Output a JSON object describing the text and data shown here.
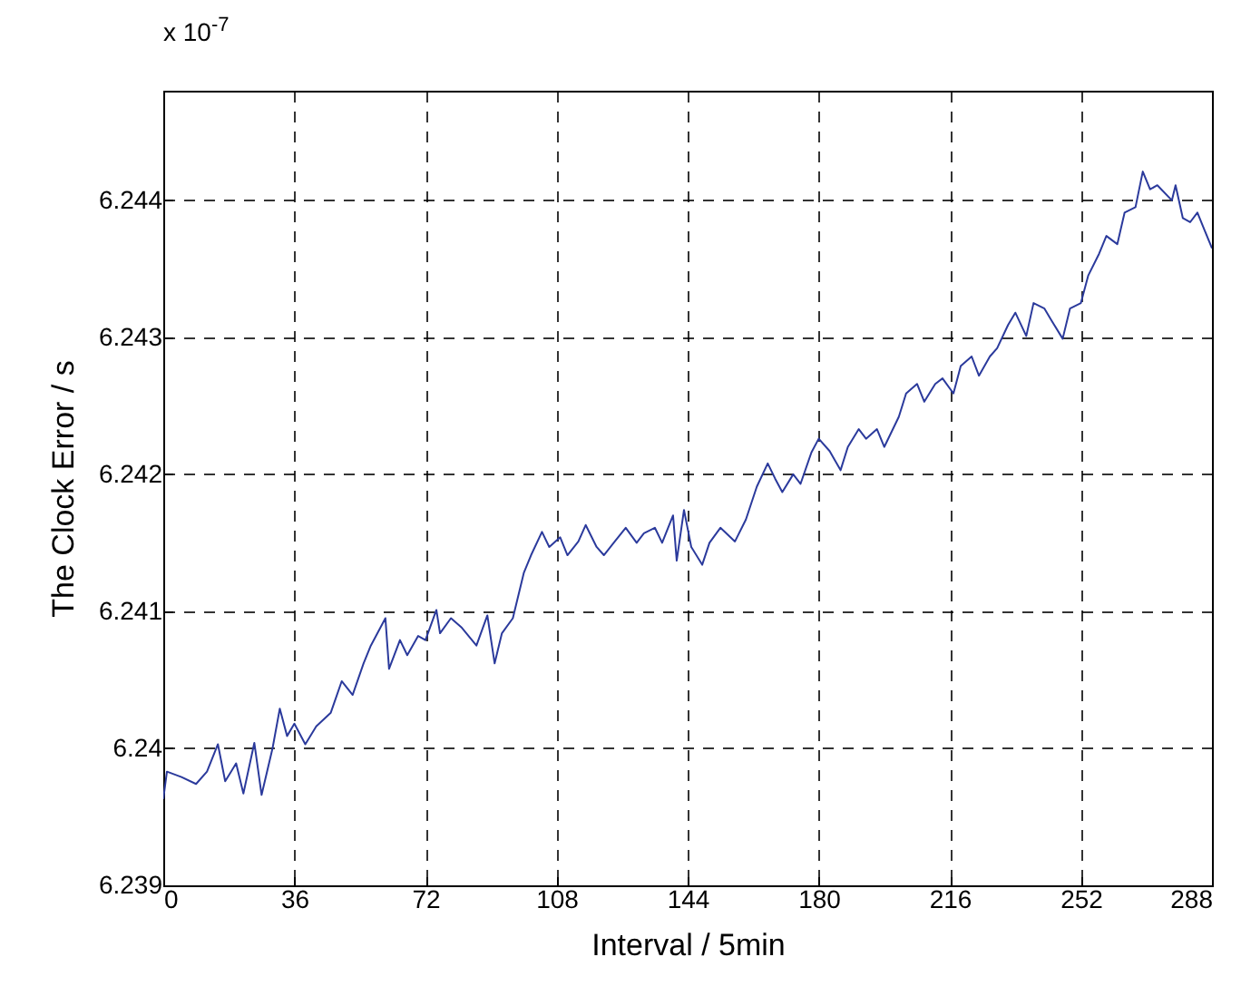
{
  "chart_data": {
    "type": "line",
    "xlabel": "Interval / 5min",
    "ylabel": "The Clock Error / s",
    "annotations": [
      "x 10$^{-7}$"
    ],
    "xlim": [
      0,
      288
    ],
    "xticks": [
      0,
      36,
      72,
      108,
      144,
      180,
      216,
      252,
      288
    ],
    "ylim": [
      6.239,
      6.2448
    ],
    "yticks": [
      6.239,
      6.24,
      6.241,
      6.242,
      6.243,
      6.244
    ],
    "grid": true,
    "line_style": "solid",
    "x": [
      0,
      1,
      5,
      9,
      12,
      15,
      17,
      20,
      22,
      25,
      27,
      30,
      32,
      34,
      36,
      39,
      42,
      46,
      49,
      52,
      55,
      57,
      61,
      62,
      65,
      67,
      70,
      72,
      75,
      76,
      79,
      82,
      86,
      89,
      91,
      93,
      96,
      99,
      101,
      104,
      106,
      109,
      111,
      114,
      116,
      119,
      121,
      124,
      127,
      130,
      132,
      135,
      137,
      140,
      141,
      143,
      145,
      148,
      150,
      153,
      157,
      160,
      163,
      166,
      168,
      170,
      173,
      175,
      178,
      180,
      183,
      186,
      188,
      191,
      193,
      196,
      198,
      202,
      204,
      207,
      209,
      212,
      214,
      217,
      219,
      222,
      224,
      227,
      229,
      232,
      234,
      237,
      239,
      242,
      244,
      247,
      249,
      252,
      254,
      257,
      259,
      262,
      264,
      267,
      269,
      271,
      273,
      277,
      278,
      280,
      282,
      284,
      286,
      288
    ],
    "series": [
      {
        "color": "#2b3a9c",
        "values": [
          6.23963,
          6.23983,
          6.23979,
          6.23974,
          6.23983,
          6.24003,
          6.23976,
          6.23989,
          6.23967,
          6.24004,
          6.23966,
          6.24,
          6.24029,
          6.24009,
          6.24018,
          6.24003,
          6.24016,
          6.24026,
          6.24049,
          6.24039,
          6.24062,
          6.24075,
          6.24095,
          6.24058,
          6.24079,
          6.24068,
          6.24082,
          6.24079,
          6.24101,
          6.24084,
          6.24095,
          6.24088,
          6.24075,
          6.24097,
          6.24062,
          6.24084,
          6.24095,
          6.24128,
          6.24141,
          6.24158,
          6.24147,
          6.24154,
          6.24141,
          6.24151,
          6.24163,
          6.24147,
          6.24141,
          6.24151,
          6.24161,
          6.2415,
          6.24157,
          6.24161,
          6.2415,
          6.2417,
          6.24137,
          6.24174,
          6.24147,
          6.24134,
          6.2415,
          6.24161,
          6.24151,
          6.24167,
          6.24191,
          6.24208,
          6.24197,
          6.24187,
          6.242,
          6.24193,
          6.24216,
          6.24226,
          6.24217,
          6.24203,
          6.2422,
          6.24233,
          6.24226,
          6.24233,
          6.2422,
          6.24242,
          6.24259,
          6.24266,
          6.24253,
          6.24266,
          6.2427,
          6.24259,
          6.24279,
          6.24286,
          6.24272,
          6.24286,
          6.24292,
          6.24309,
          6.24318,
          6.24301,
          6.24325,
          6.24321,
          6.24312,
          6.24299,
          6.24321,
          6.24325,
          6.24345,
          6.24361,
          6.24374,
          6.24368,
          6.24391,
          6.24395,
          6.24421,
          6.24408,
          6.24411,
          6.244,
          6.24411,
          6.24387,
          6.24384,
          6.24391,
          6.24378,
          6.24365
        ]
      }
    ]
  }
}
